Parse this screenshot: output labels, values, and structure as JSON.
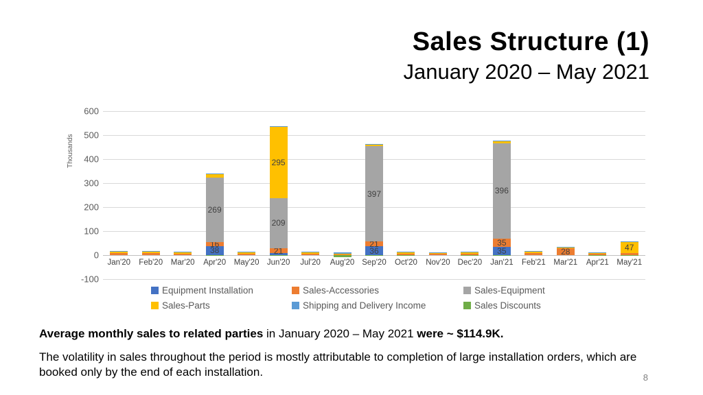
{
  "slide": {
    "title": "Sales Structure (1)",
    "subtitle": "January 2020 – May 2021",
    "page_number": "8"
  },
  "footer": {
    "line1": [
      {
        "text": "Average monthly sales to related parties",
        "bold": true
      },
      {
        "text": " in January 2020 – May 2021 ",
        "bold": false
      },
      {
        "text": "were ~ $114.9K.",
        "bold": true
      }
    ],
    "line2": "The volatility in sales throughout the period is mostly attributable to completion of large installation orders, which are booked only by the end of each installation."
  },
  "chart_data": {
    "type": "bar",
    "stacked": true,
    "title": "",
    "ylabel": "Thousands",
    "ylim": [
      -100,
      600
    ],
    "yticks": [
      600,
      500,
      400,
      300,
      200,
      100,
      0,
      -100
    ],
    "grid": true,
    "legend_position": "bottom",
    "label_min": 16,
    "label_color": "#404040",
    "categories": [
      "Jan'20",
      "Feb'20",
      "Mar'20",
      "Apr'20",
      "May'20",
      "Jun'20",
      "Jul'20",
      "Aug'20",
      "Sep'20",
      "Oct'20",
      "Nov'20",
      "Dec'20",
      "Jan'21",
      "Feb'21",
      "Mar'21",
      "Apr'21",
      "May'21"
    ],
    "series": [
      {
        "name": "Equipment Installation",
        "color": "#4472C4",
        "values": [
          0,
          0,
          0,
          38,
          0,
          8,
          0,
          0,
          36,
          0,
          0,
          0,
          35,
          0,
          0,
          0,
          0
        ]
      },
      {
        "name": "Sales-Accessories",
        "color": "#ED7D31",
        "values": [
          8,
          8,
          7,
          16,
          7,
          21,
          5,
          4,
          21,
          6,
          5,
          6,
          35,
          8,
          28,
          5,
          8
        ]
      },
      {
        "name": "Sales-Equipment",
        "color": "#A5A5A5",
        "values": [
          0,
          0,
          0,
          269,
          0,
          209,
          0,
          0,
          397,
          0,
          0,
          0,
          396,
          0,
          0,
          0,
          0
        ]
      },
      {
        "name": "Sales-Parts",
        "color": "#FFC000",
        "values": [
          6,
          6,
          6,
          15,
          6,
          295,
          8,
          3,
          8,
          5,
          5,
          5,
          10,
          7,
          5,
          5,
          47
        ]
      },
      {
        "name": "Shipping and Delivery Income",
        "color": "#5B9BD5",
        "values": [
          2,
          2,
          2,
          2,
          2,
          3,
          2,
          4,
          2,
          2,
          2,
          2,
          2,
          2,
          2,
          2,
          2
        ]
      },
      {
        "name": "Sales Discounts",
        "color": "#70AD47",
        "values": [
          0,
          0,
          0,
          -3,
          0,
          -4,
          0,
          -8,
          -3,
          -2,
          0,
          -2,
          -3,
          0,
          0,
          -4,
          -2
        ]
      }
    ]
  }
}
